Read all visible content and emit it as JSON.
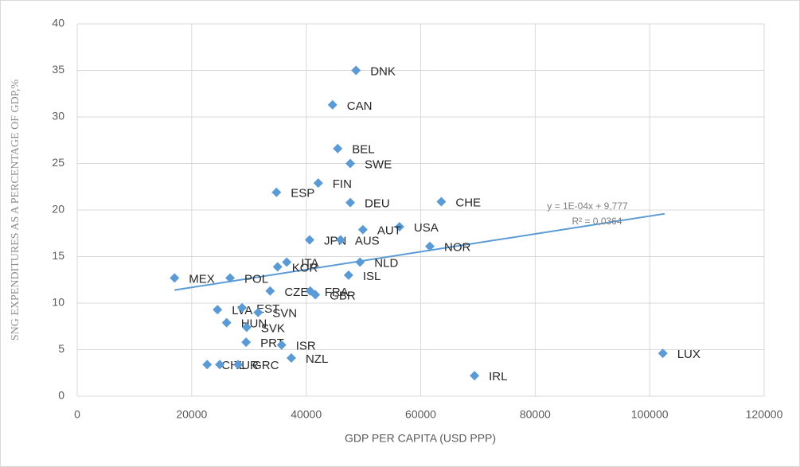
{
  "chart_data": {
    "type": "scatter",
    "x_label": "GDP PER CAPITA (USD PPP)",
    "y_label": "SNG EXPENDITURES  AS A PERCENTAGE  OF GDP,%",
    "labels": [
      "DNK",
      "CAN",
      "BEL",
      "SWE",
      "FIN",
      "ESP",
      "DEU",
      "CHE",
      "USA",
      "AUT",
      "JPN",
      "AUS",
      "NOR",
      "ITA",
      "KOR",
      "NLD",
      "ISL",
      "MEX",
      "POL",
      "CZE",
      "FRA",
      "GBR",
      "LVA",
      "EST",
      "SVN",
      "HUN",
      "SVK",
      "PRT",
      "ISR",
      "NZL",
      "CHL",
      "TUR",
      "GRC",
      "LUX",
      "IRL"
    ],
    "x": [
      48700,
      44600,
      45500,
      47700,
      42100,
      34800,
      47700,
      63600,
      56300,
      49900,
      40600,
      46000,
      61600,
      36600,
      35000,
      49400,
      47400,
      17000,
      26700,
      33700,
      40700,
      41600,
      24500,
      28800,
      31600,
      26100,
      29600,
      29500,
      35700,
      37400,
      22700,
      24900,
      28100,
      102300,
      69400
    ],
    "values": [
      35,
      31.3,
      26.6,
      25,
      22.9,
      21.9,
      20.8,
      20.9,
      18.2,
      17.9,
      16.8,
      16.8,
      16.1,
      14.4,
      13.9,
      14.4,
      13,
      12.7,
      12.7,
      11.3,
      11.3,
      10.9,
      9.3,
      9.5,
      9,
      7.9,
      7.4,
      5.8,
      5.5,
      4.1,
      3.4,
      3.4,
      3.4,
      4.6,
      2.2
    ],
    "color": "#5b9bd5",
    "xlim": [
      0,
      120000
    ],
    "xticks": [
      0,
      20000,
      40000,
      60000,
      80000,
      100000,
      120000
    ],
    "ylim": [
      0,
      40
    ],
    "yticks": [
      0,
      5,
      10,
      15,
      20,
      25,
      30,
      35,
      40
    ],
    "grid": true,
    "trendline": {
      "x": [
        17000,
        102600
      ],
      "y": [
        11.4,
        19.6
      ],
      "equation": "y = 1E-04x + 9,777",
      "r2": "R² = 0,0364"
    }
  }
}
